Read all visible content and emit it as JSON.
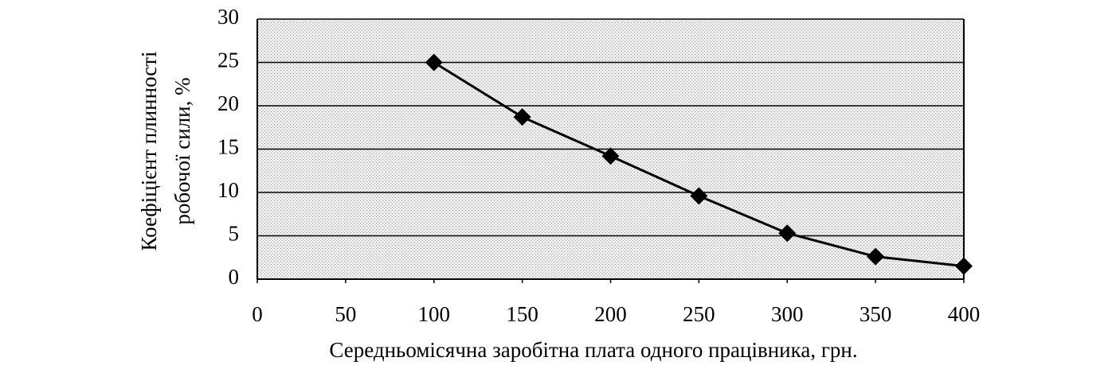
{
  "chart_data": {
    "type": "line",
    "ylabel": [
      "Коефіцієнт плинності",
      "робочої сили, %"
    ],
    "xlabel": "Середньомісячна заробітна плата одного працівника, грн.",
    "x": [
      100,
      150,
      200,
      250,
      300,
      350,
      400
    ],
    "series": [
      {
        "color": "#000000",
        "values": [
          25,
          18.7,
          14.2,
          9.6,
          5.3,
          2.6,
          1.5
        ]
      }
    ],
    "xlim": [
      0,
      400
    ],
    "xticks": [
      0,
      50,
      100,
      150,
      200,
      250,
      300,
      350,
      400
    ],
    "ylim": [
      0,
      30
    ],
    "yticks": [
      0,
      5,
      10,
      15,
      20,
      25,
      30
    ],
    "grid": true
  }
}
